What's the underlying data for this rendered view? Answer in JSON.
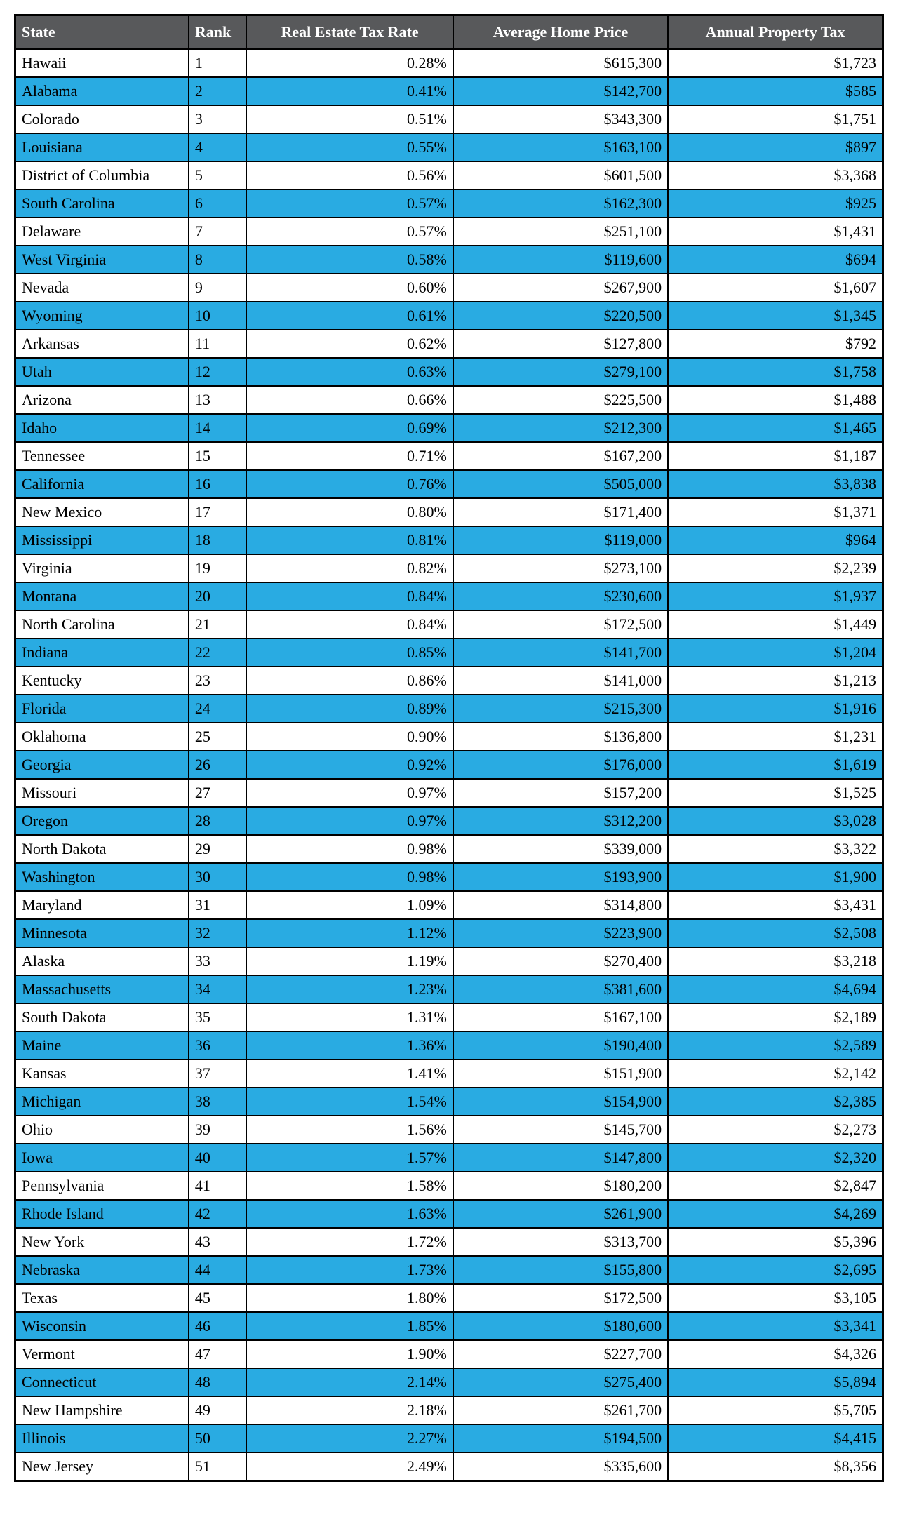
{
  "table": {
    "header_bg": "#58595b",
    "header_text_color": "#ffffff",
    "row_odd_bg": "#ffffff",
    "row_even_bg": "#29abe2",
    "border_color": "#000000",
    "font_family": "Georgia, Times New Roman, serif",
    "header_fontsize": 22,
    "cell_fontsize": 22,
    "columns": [
      {
        "key": "state",
        "label": "State",
        "align": "left",
        "header_align": "left"
      },
      {
        "key": "rank",
        "label": "Rank",
        "align": "left",
        "header_align": "left"
      },
      {
        "key": "rate",
        "label": "Real Estate Tax Rate",
        "align": "right",
        "header_align": "center"
      },
      {
        "key": "price",
        "label": "Average Home Price",
        "align": "right",
        "header_align": "center"
      },
      {
        "key": "tax",
        "label": "Annual Property Tax",
        "align": "right",
        "header_align": "center"
      }
    ],
    "rows": [
      {
        "state": "Hawaii",
        "rank": "1",
        "rate": "0.28%",
        "price": "$615,300",
        "tax": "$1,723"
      },
      {
        "state": "Alabama",
        "rank": "2",
        "rate": "0.41%",
        "price": "$142,700",
        "tax": "$585"
      },
      {
        "state": "Colorado",
        "rank": "3",
        "rate": "0.51%",
        "price": "$343,300",
        "tax": "$1,751"
      },
      {
        "state": "Louisiana",
        "rank": "4",
        "rate": "0.55%",
        "price": "$163,100",
        "tax": "$897"
      },
      {
        "state": "District of Columbia",
        "rank": "5",
        "rate": "0.56%",
        "price": "$601,500",
        "tax": "$3,368"
      },
      {
        "state": "South Carolina",
        "rank": "6",
        "rate": "0.57%",
        "price": "$162,300",
        "tax": "$925"
      },
      {
        "state": "Delaware",
        "rank": "7",
        "rate": "0.57%",
        "price": "$251,100",
        "tax": "$1,431"
      },
      {
        "state": "West Virginia",
        "rank": "8",
        "rate": "0.58%",
        "price": "$119,600",
        "tax": "$694"
      },
      {
        "state": "Nevada",
        "rank": "9",
        "rate": "0.60%",
        "price": "$267,900",
        "tax": "$1,607"
      },
      {
        "state": "Wyoming",
        "rank": "10",
        "rate": "0.61%",
        "price": "$220,500",
        "tax": "$1,345"
      },
      {
        "state": "Arkansas",
        "rank": "11",
        "rate": "0.62%",
        "price": "$127,800",
        "tax": "$792"
      },
      {
        "state": "Utah",
        "rank": "12",
        "rate": "0.63%",
        "price": "$279,100",
        "tax": "$1,758"
      },
      {
        "state": "Arizona",
        "rank": "13",
        "rate": "0.66%",
        "price": "$225,500",
        "tax": "$1,488"
      },
      {
        "state": "Idaho",
        "rank": "14",
        "rate": "0.69%",
        "price": "$212,300",
        "tax": "$1,465"
      },
      {
        "state": "Tennessee",
        "rank": "15",
        "rate": "0.71%",
        "price": "$167,200",
        "tax": "$1,187"
      },
      {
        "state": "California",
        "rank": "16",
        "rate": "0.76%",
        "price": "$505,000",
        "tax": "$3,838"
      },
      {
        "state": "New Mexico",
        "rank": "17",
        "rate": "0.80%",
        "price": "$171,400",
        "tax": "$1,371"
      },
      {
        "state": "Mississippi",
        "rank": "18",
        "rate": "0.81%",
        "price": "$119,000",
        "tax": "$964"
      },
      {
        "state": "Virginia",
        "rank": "19",
        "rate": "0.82%",
        "price": "$273,100",
        "tax": "$2,239"
      },
      {
        "state": "Montana",
        "rank": "20",
        "rate": "0.84%",
        "price": "$230,600",
        "tax": "$1,937"
      },
      {
        "state": "North Carolina",
        "rank": "21",
        "rate": "0.84%",
        "price": "$172,500",
        "tax": "$1,449"
      },
      {
        "state": "Indiana",
        "rank": "22",
        "rate": "0.85%",
        "price": "$141,700",
        "tax": "$1,204"
      },
      {
        "state": "Kentucky",
        "rank": "23",
        "rate": "0.86%",
        "price": "$141,000",
        "tax": "$1,213"
      },
      {
        "state": "Florida",
        "rank": "24",
        "rate": "0.89%",
        "price": "$215,300",
        "tax": "$1,916"
      },
      {
        "state": "Oklahoma",
        "rank": "25",
        "rate": "0.90%",
        "price": "$136,800",
        "tax": "$1,231"
      },
      {
        "state": "Georgia",
        "rank": "26",
        "rate": "0.92%",
        "price": "$176,000",
        "tax": "$1,619"
      },
      {
        "state": "Missouri",
        "rank": "27",
        "rate": "0.97%",
        "price": "$157,200",
        "tax": "$1,525"
      },
      {
        "state": "Oregon",
        "rank": "28",
        "rate": "0.97%",
        "price": "$312,200",
        "tax": "$3,028"
      },
      {
        "state": "North Dakota",
        "rank": "29",
        "rate": "0.98%",
        "price": "$339,000",
        "tax": "$3,322"
      },
      {
        "state": "Washington",
        "rank": "30",
        "rate": "0.98%",
        "price": "$193,900",
        "tax": "$1,900"
      },
      {
        "state": "Maryland",
        "rank": "31",
        "rate": "1.09%",
        "price": "$314,800",
        "tax": "$3,431"
      },
      {
        "state": "Minnesota",
        "rank": "32",
        "rate": "1.12%",
        "price": "$223,900",
        "tax": "$2,508"
      },
      {
        "state": "Alaska",
        "rank": "33",
        "rate": "1.19%",
        "price": "$270,400",
        "tax": "$3,218"
      },
      {
        "state": "Massachusetts",
        "rank": "34",
        "rate": "1.23%",
        "price": "$381,600",
        "tax": "$4,694"
      },
      {
        "state": "South Dakota",
        "rank": "35",
        "rate": "1.31%",
        "price": "$167,100",
        "tax": "$2,189"
      },
      {
        "state": "Maine",
        "rank": "36",
        "rate": "1.36%",
        "price": "$190,400",
        "tax": "$2,589"
      },
      {
        "state": "Kansas",
        "rank": "37",
        "rate": "1.41%",
        "price": "$151,900",
        "tax": "$2,142"
      },
      {
        "state": "Michigan",
        "rank": "38",
        "rate": "1.54%",
        "price": "$154,900",
        "tax": "$2,385"
      },
      {
        "state": "Ohio",
        "rank": "39",
        "rate": "1.56%",
        "price": "$145,700",
        "tax": "$2,273"
      },
      {
        "state": "Iowa",
        "rank": "40",
        "rate": "1.57%",
        "price": "$147,800",
        "tax": "$2,320"
      },
      {
        "state": "Pennsylvania",
        "rank": "41",
        "rate": "1.58%",
        "price": "$180,200",
        "tax": "$2,847"
      },
      {
        "state": "Rhode Island",
        "rank": "42",
        "rate": "1.63%",
        "price": "$261,900",
        "tax": "$4,269"
      },
      {
        "state": "New York",
        "rank": "43",
        "rate": "1.72%",
        "price": "$313,700",
        "tax": "$5,396"
      },
      {
        "state": "Nebraska",
        "rank": "44",
        "rate": "1.73%",
        "price": "$155,800",
        "tax": "$2,695"
      },
      {
        "state": "Texas",
        "rank": "45",
        "rate": "1.80%",
        "price": "$172,500",
        "tax": "$3,105"
      },
      {
        "state": "Wisconsin",
        "rank": "46",
        "rate": "1.85%",
        "price": "$180,600",
        "tax": "$3,341"
      },
      {
        "state": "Vermont",
        "rank": "47",
        "rate": "1.90%",
        "price": "$227,700",
        "tax": "$4,326"
      },
      {
        "state": "Connecticut",
        "rank": "48",
        "rate": "2.14%",
        "price": "$275,400",
        "tax": "$5,894"
      },
      {
        "state": "New Hampshire",
        "rank": "49",
        "rate": "2.18%",
        "price": "$261,700",
        "tax": "$5,705"
      },
      {
        "state": "Illinois",
        "rank": "50",
        "rate": "2.27%",
        "price": "$194,500",
        "tax": "$4,415"
      },
      {
        "state": "New Jersey",
        "rank": "51",
        "rate": "2.49%",
        "price": "$335,600",
        "tax": "$8,356"
      }
    ]
  }
}
